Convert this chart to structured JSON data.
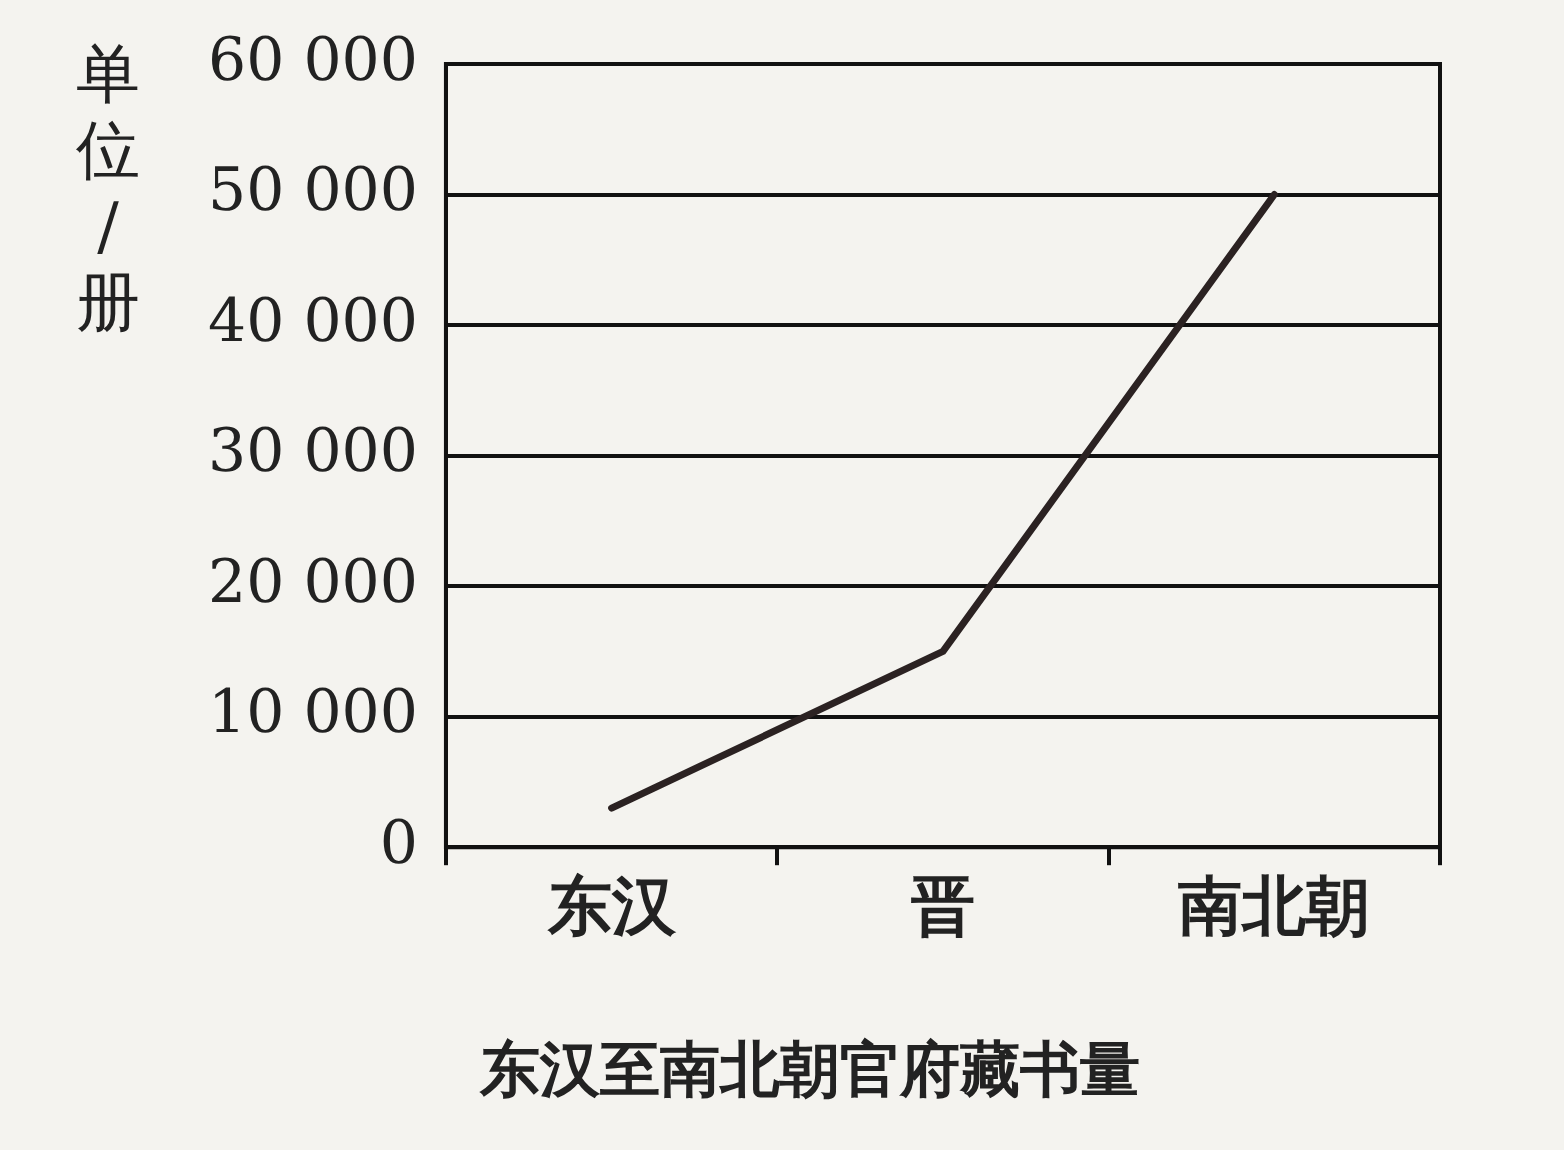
{
  "chart_data": {
    "type": "line",
    "title": "东汉至南北朝官府藏书量",
    "ylabel": "单位/册",
    "categories": [
      "东汉",
      "晋",
      "南北朝"
    ],
    "series": [
      {
        "color": "#2b2222",
        "values": [
          3000,
          15000,
          50000
        ]
      }
    ],
    "ylim": [
      0,
      60000
    ],
    "yticks": [
      {
        "value": 0,
        "label": "0"
      },
      {
        "value": 10000,
        "label": "10 000"
      },
      {
        "value": 20000,
        "label": "20 000"
      },
      {
        "value": 30000,
        "label": "30 000"
      },
      {
        "value": 40000,
        "label": "40 000"
      },
      {
        "value": 50000,
        "label": "50 000"
      },
      {
        "value": 60000,
        "label": "60 000"
      }
    ],
    "grid": "y",
    "legend": false,
    "marker": "none",
    "line_style": "solid"
  }
}
